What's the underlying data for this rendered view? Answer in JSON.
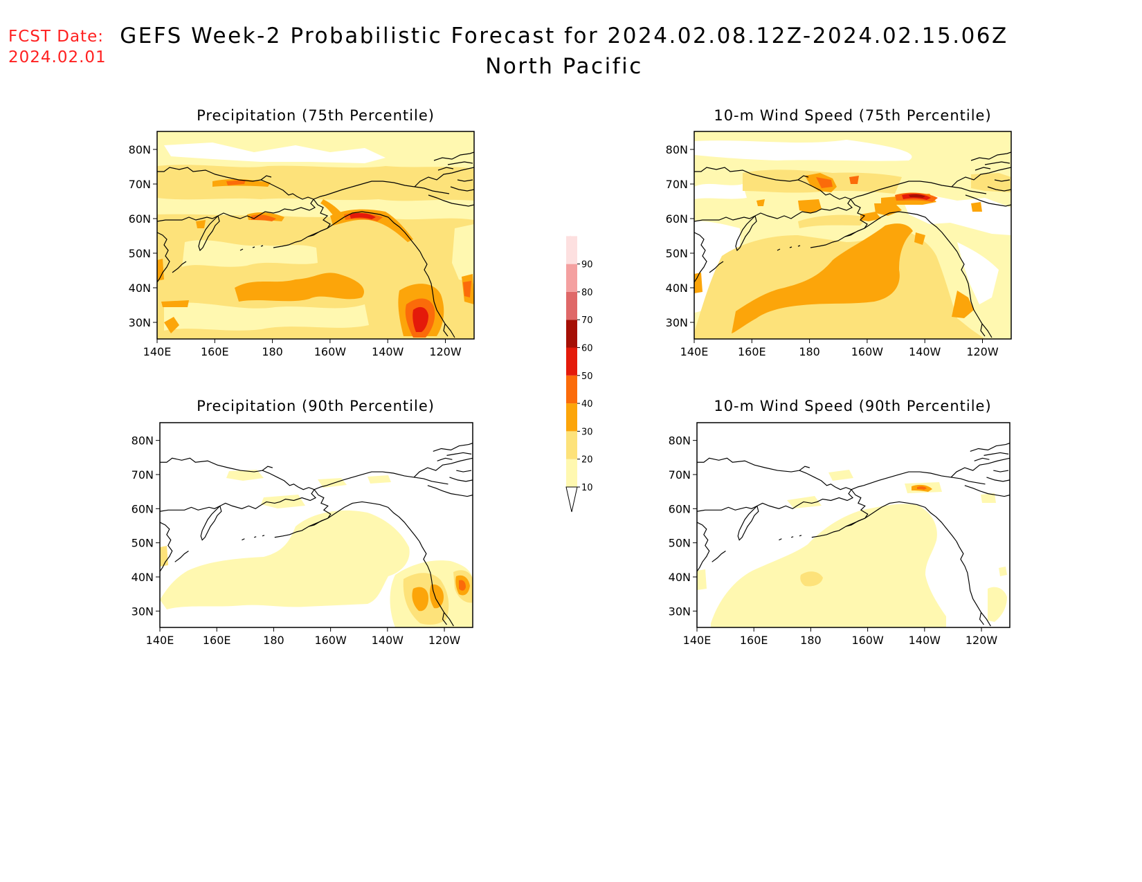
{
  "forecast_date": {
    "label": "FCST Date:",
    "value": "2024.02.01"
  },
  "title": {
    "line1": "GEFS Week-2 Probabilistic Forecast for 2024.02.08.12Z-2024.02.15.06Z",
    "line2": "North Pacific"
  },
  "axes": {
    "lon_ticks": [
      "140E",
      "160E",
      "180",
      "160W",
      "140W",
      "120W"
    ],
    "lat_ticks": [
      "80N",
      "70N",
      "60N",
      "50N",
      "40N",
      "30N"
    ]
  },
  "panels": [
    {
      "title": "Precipitation (75th Percentile)"
    },
    {
      "title": "10-m Wind Speed (75th Percentile)"
    },
    {
      "title": "Precipitation (90th Percentile)"
    },
    {
      "title": "10-m Wind Speed (90th Percentile)"
    }
  ],
  "colorbar": {
    "levels": [
      "10",
      "20",
      "30",
      "40",
      "50",
      "60",
      "70",
      "80",
      "90"
    ],
    "colors": {
      "c10": "#fff8b0",
      "c20": "#fde27a",
      "c30": "#fca50a",
      "c40": "#fb6b0a",
      "c50": "#e41a0a",
      "c60": "#a50f05",
      "c70": "#df6868",
      "c80": "#f4a0a0",
      "c90": "#fde0e0"
    }
  }
}
